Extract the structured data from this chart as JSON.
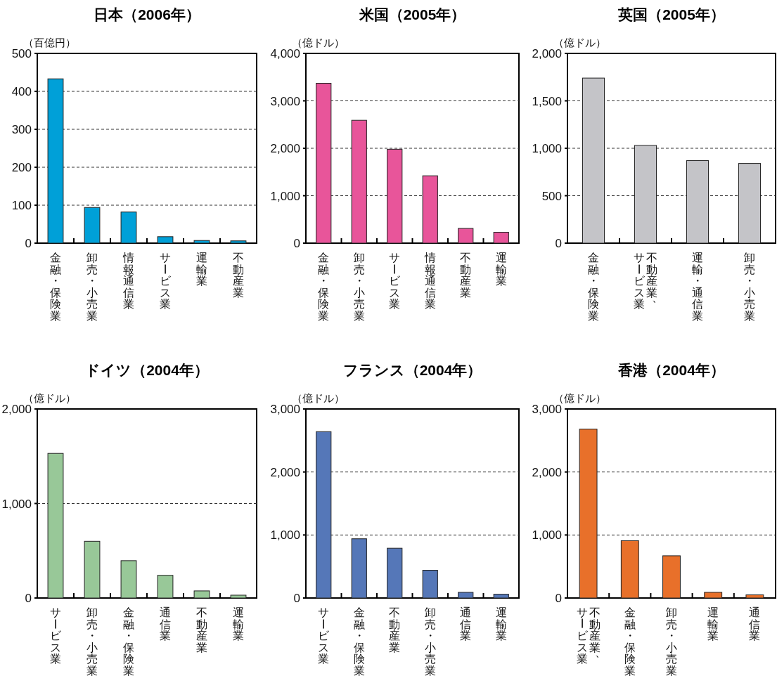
{
  "chart_data": [
    {
      "type": "bar",
      "title": "日本（2006年）",
      "ylabel": "（百億円）",
      "categories": [
        "金融・保険業",
        "卸売・小売業",
        "情報通信業",
        "サービス業",
        "運輸業",
        "不動産業"
      ],
      "values": [
        433,
        94,
        82,
        17,
        7,
        6
      ],
      "color": "#00a0d8",
      "ylim": [
        0,
        500
      ],
      "yticks": [
        0,
        100,
        200,
        300,
        400,
        500
      ],
      "grid": "y"
    },
    {
      "type": "bar",
      "title": "米国（2005年）",
      "ylabel": "（億ドル）",
      "categories": [
        "金融・保険業",
        "卸売・小売業",
        "サービス業",
        "情報通信業",
        "不動産業",
        "運輸業"
      ],
      "values": [
        3370,
        2590,
        1980,
        1420,
        310,
        230
      ],
      "color": "#e8559a",
      "ylim": [
        0,
        4000
      ],
      "yticks": [
        0,
        {
          "value": 1000,
          "label": "1,000"
        },
        {
          "value": 2000,
          "label": "2,000"
        },
        {
          "value": 3000,
          "label": "3,000"
        },
        {
          "value": 4000,
          "label": "4,000"
        }
      ],
      "grid": "y"
    },
    {
      "type": "bar",
      "title": "英国（2005年）",
      "ylabel": "（億ドル）",
      "categories": [
        "金融・保険業",
        "不動産業、サービス業",
        "運輸・通信業",
        "卸売・小売業"
      ],
      "values": [
        1740,
        1030,
        870,
        840
      ],
      "color": "#c4c4c8",
      "ylim": [
        0,
        2000
      ],
      "yticks": [
        0,
        500,
        {
          "value": 1000,
          "label": "1,000"
        },
        {
          "value": 1500,
          "label": "1,500"
        },
        {
          "value": 2000,
          "label": "2,000"
        }
      ],
      "grid": "y"
    },
    {
      "type": "bar",
      "title": "ドイツ（2004年）",
      "ylabel": "（億ドル）",
      "categories": [
        "サービス業",
        "卸売・小売業",
        "金融・保険業",
        "通信業",
        "不動産業",
        "運輸業"
      ],
      "values": [
        1530,
        600,
        395,
        240,
        75,
        30
      ],
      "color": "#98c898",
      "ylim": [
        0,
        2000
      ],
      "yticks": [
        0,
        {
          "value": 1000,
          "label": "1,000"
        },
        {
          "value": 2000,
          "label": "2,000"
        }
      ],
      "grid": "y"
    },
    {
      "type": "bar",
      "title": "フランス（2004年）",
      "ylabel": "（億ドル）",
      "categories": [
        "サービス業",
        "金融・保険業",
        "不動産業",
        "卸売・小売業",
        "通信業",
        "運輸業"
      ],
      "values": [
        2640,
        940,
        790,
        440,
        90,
        60
      ],
      "color": "#5577b8",
      "ylim": [
        0,
        3000
      ],
      "yticks": [
        0,
        {
          "value": 1000,
          "label": "1,000"
        },
        {
          "value": 2000,
          "label": "2,000"
        },
        {
          "value": 3000,
          "label": "3,000"
        }
      ],
      "grid": "y"
    },
    {
      "type": "bar",
      "title": "香港（2004年）",
      "ylabel": "（億ドル）",
      "categories": [
        "不動産業、サービス業",
        "金融・保険業",
        "卸売・小売業",
        "運輸業",
        "通信業"
      ],
      "values": [
        2680,
        910,
        670,
        90,
        50
      ],
      "color": "#e8702a",
      "ylim": [
        0,
        3000
      ],
      "yticks": [
        0,
        {
          "value": 1000,
          "label": "1,000"
        },
        {
          "value": 2000,
          "label": "2,000"
        },
        {
          "value": 3000,
          "label": "3,000"
        }
      ],
      "grid": "y"
    }
  ]
}
